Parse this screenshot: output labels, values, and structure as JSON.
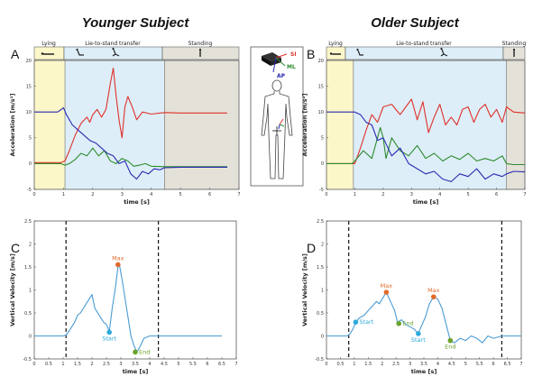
{
  "headings": {
    "left": "Younger Subject",
    "right": "Older Subject"
  },
  "panel_letters": [
    "A",
    "B",
    "C",
    "D"
  ],
  "phases": {
    "lying": "Lying",
    "transfer": "Lie-to-stand transfer",
    "standing": "Standing"
  },
  "sensor": {
    "si": "SI",
    "ml": "ML",
    "ap": "AP"
  },
  "colors": {
    "si": "#e0302a",
    "ml": "#2e8b2e",
    "ap": "#2a2ab0",
    "velocity": "#4a9bd4",
    "max": "#e26b2a",
    "start": "#2eaadc",
    "end": "#6aa32a",
    "lying_bg": "#fbf7c9",
    "transfer_bg": "#ddeef8",
    "standing_bg": "#e4e1d8"
  },
  "icons": [
    "lying-person-icon",
    "sitting-person-icon",
    "rising-person-icon",
    "standing-person-icon",
    "imu-sensor-icon",
    "body-outline-icon"
  ],
  "chart_data": [
    {
      "id": "A",
      "type": "line",
      "xlabel": "time [s]",
      "ylabel": "Acceleration [m/s²]",
      "xlim": [
        0,
        7
      ],
      "ylim": [
        -5,
        20
      ],
      "xticks": [
        "0",
        "1",
        "2",
        "3",
        "4",
        "5",
        "6",
        "7"
      ],
      "yticks": [
        "-5",
        "0",
        "5",
        "10",
        "15",
        "20"
      ],
      "phase_bounds": [
        1.05,
        4.45
      ],
      "series": [
        {
          "key": "si",
          "x": [
            0,
            0.9,
            1.05,
            1.2,
            1.4,
            1.6,
            1.8,
            1.9,
            2.0,
            2.15,
            2.3,
            2.45,
            2.6,
            2.7,
            2.8,
            2.9,
            3.0,
            3.1,
            3.2,
            3.35,
            3.5,
            3.7,
            4.0,
            4.45,
            5,
            6,
            6.6
          ],
          "y": [
            0.2,
            0.2,
            0.5,
            2.5,
            5.5,
            7.8,
            9.0,
            8.0,
            9.5,
            10.5,
            9.0,
            10.5,
            15.5,
            18.5,
            13.0,
            8.5,
            5.0,
            11.0,
            13.0,
            11.0,
            8.5,
            10.0,
            9.6,
            9.9,
            9.8,
            9.8,
            9.8
          ]
        },
        {
          "key": "ml",
          "x": [
            0,
            0.9,
            1.05,
            1.2,
            1.4,
            1.6,
            1.8,
            2.0,
            2.2,
            2.4,
            2.6,
            2.8,
            3.0,
            3.2,
            3.4,
            3.6,
            3.8,
            4.0,
            4.45,
            5,
            6,
            6.6
          ],
          "y": [
            0,
            0,
            -0.3,
            0,
            0.8,
            2.0,
            1.5,
            3.0,
            1.5,
            2.5,
            0.5,
            0.0,
            1.0,
            0.5,
            -0.5,
            -0.3,
            0.0,
            -0.5,
            -0.6,
            -0.6,
            -0.6,
            -0.6
          ]
        },
        {
          "key": "ap",
          "x": [
            0,
            0.8,
            1.0,
            1.1,
            1.3,
            1.5,
            1.7,
            1.9,
            2.1,
            2.3,
            2.5,
            2.7,
            2.9,
            3.1,
            3.3,
            3.5,
            3.7,
            3.9,
            4.1,
            4.3,
            4.45,
            5,
            6,
            6.6
          ],
          "y": [
            10,
            10,
            10.8,
            9.5,
            7.5,
            6.5,
            5.5,
            4.5,
            4.0,
            3.0,
            2.0,
            1.5,
            0.0,
            0.5,
            -2.0,
            -3.0,
            -1.5,
            -2.0,
            -1.0,
            -1.2,
            -0.8,
            -0.7,
            -0.7,
            -0.7
          ]
        }
      ]
    },
    {
      "id": "B",
      "type": "line",
      "xlabel": "time [s]",
      "ylabel": "Acceleration [m/s²]",
      "xlim": [
        0,
        7
      ],
      "ylim": [
        -5,
        20
      ],
      "xticks": [
        "0",
        "1",
        "2",
        "3",
        "4",
        "5",
        "6",
        "7"
      ],
      "yticks": [
        "-5",
        "0",
        "5",
        "10",
        "15",
        "20"
      ],
      "phase_bounds": [
        0.95,
        6.35
      ],
      "series": [
        {
          "key": "si",
          "x": [
            0,
            0.9,
            1.0,
            1.2,
            1.4,
            1.6,
            1.8,
            2.0,
            2.3,
            2.6,
            2.8,
            3.0,
            3.2,
            3.4,
            3.6,
            3.8,
            4.0,
            4.2,
            4.4,
            4.6,
            4.8,
            5.0,
            5.2,
            5.4,
            5.6,
            5.8,
            6.0,
            6.2,
            6.35,
            6.6,
            7.0
          ],
          "y": [
            0,
            0,
            0,
            3.0,
            6.5,
            9.5,
            8.0,
            11.0,
            11.5,
            9.5,
            11.0,
            12.5,
            8.5,
            12.0,
            6.0,
            9.0,
            11.5,
            7.5,
            9.0,
            7.5,
            10.5,
            11.0,
            8.0,
            10.5,
            11.5,
            9.0,
            10.5,
            8.0,
            11.0,
            10.0,
            9.8
          ]
        },
        {
          "key": "ml",
          "x": [
            0,
            0.9,
            1.0,
            1.3,
            1.6,
            1.9,
            2.0,
            2.1,
            2.3,
            2.6,
            2.9,
            3.2,
            3.5,
            3.8,
            4.1,
            4.4,
            4.7,
            5.0,
            5.3,
            5.6,
            5.9,
            6.2,
            6.35,
            6.6,
            7.0
          ],
          "y": [
            0,
            0,
            0.5,
            2.5,
            1.0,
            7.0,
            5.0,
            1.0,
            5.0,
            2.5,
            1.5,
            3.5,
            1.0,
            2.0,
            0.5,
            1.5,
            0.8,
            2.0,
            0.5,
            1.0,
            0.5,
            1.5,
            0.0,
            -0.2,
            -0.2
          ]
        },
        {
          "key": "ap",
          "x": [
            0,
            0.9,
            1.0,
            1.2,
            1.4,
            1.6,
            1.8,
            2.0,
            2.3,
            2.6,
            2.9,
            3.2,
            3.5,
            3.8,
            4.1,
            4.4,
            4.7,
            5.0,
            5.3,
            5.6,
            5.9,
            6.2,
            6.35,
            6.6,
            7.0
          ],
          "y": [
            10,
            10,
            10,
            9.5,
            8.0,
            7.5,
            4.5,
            5.0,
            1.5,
            3.0,
            0.0,
            -1.0,
            -2.0,
            -1.5,
            -3.0,
            -3.5,
            -2.0,
            -2.5,
            -1.0,
            -3.0,
            -2.0,
            -2.5,
            -2.0,
            -1.5,
            -1.6
          ]
        }
      ]
    },
    {
      "id": "C",
      "type": "line",
      "xlabel": "time [s]",
      "ylabel": "Vertical Velocity [m/s]",
      "xlim": [
        0,
        7
      ],
      "ylim": [
        -0.5,
        2.5
      ],
      "xticks": [
        "0",
        "0.5",
        "1",
        "1.5",
        "2",
        "2.5",
        "3",
        "3.5",
        "4",
        "4.5",
        "5",
        "5.5",
        "6",
        "6.5",
        "7"
      ],
      "yticks": [
        "-0.5",
        "0",
        "0.5",
        "1",
        "1.5",
        "2",
        "2.5"
      ],
      "vlines": [
        1.1,
        4.3
      ],
      "series": [
        {
          "key": "velocity",
          "x": [
            0,
            1.0,
            1.1,
            1.2,
            1.3,
            1.4,
            1.5,
            1.6,
            1.7,
            1.8,
            1.9,
            2.0,
            2.1,
            2.2,
            2.3,
            2.4,
            2.5,
            2.6,
            2.7,
            2.8,
            2.9,
            2.95,
            3.05,
            3.15,
            3.25,
            3.35,
            3.45,
            3.55,
            3.65,
            3.8,
            4.0,
            4.3,
            5,
            6,
            6.5
          ],
          "y": [
            0,
            0,
            0.02,
            0.1,
            0.2,
            0.3,
            0.45,
            0.5,
            0.6,
            0.7,
            0.8,
            0.9,
            0.6,
            0.5,
            0.4,
            0.3,
            0.25,
            0.1,
            0.6,
            1.0,
            1.5,
            1.55,
            1.2,
            0.8,
            0.4,
            0.0,
            -0.2,
            -0.35,
            -0.25,
            -0.05,
            0.0,
            0.0,
            0,
            0,
            0
          ]
        }
      ],
      "markers": [
        {
          "label": "Max",
          "x": 2.9,
          "y": 1.55,
          "color_key": "max",
          "pos": "above"
        },
        {
          "label": "Start",
          "x": 2.6,
          "y": 0.08,
          "color_key": "start",
          "pos": "below"
        },
        {
          "label": "End",
          "x": 3.5,
          "y": -0.35,
          "color_key": "end",
          "pos": "right"
        }
      ]
    },
    {
      "id": "D",
      "type": "line",
      "xlabel": "time [s]",
      "ylabel": "Vertical Velocity [m/s]",
      "xlim": [
        0,
        7
      ],
      "ylim": [
        -0.5,
        2.5
      ],
      "xticks": [
        "0",
        "0.5",
        "1",
        "1.5",
        "2",
        "2.5",
        "3",
        "3.5",
        "4",
        "4.5",
        "5",
        "5.5",
        "6",
        "6.5",
        "7"
      ],
      "yticks": [
        "-0.5",
        "0",
        "0.5",
        "1",
        "1.5",
        "2",
        "2.5"
      ],
      "vlines": [
        0.8,
        6.3
      ],
      "series": [
        {
          "key": "velocity",
          "x": [
            0,
            0.75,
            0.85,
            0.95,
            1.05,
            1.2,
            1.35,
            1.5,
            1.65,
            1.8,
            1.9,
            2.0,
            2.15,
            2.3,
            2.45,
            2.55,
            2.7,
            2.85,
            3.0,
            3.15,
            3.3,
            3.4,
            3.55,
            3.7,
            3.85,
            4.0,
            4.15,
            4.3,
            4.45,
            4.6,
            4.8,
            5.0,
            5.2,
            5.4,
            5.6,
            5.8,
            6.0,
            6.3,
            7.0
          ],
          "y": [
            0,
            0,
            0.05,
            0.15,
            0.3,
            0.4,
            0.45,
            0.55,
            0.65,
            0.75,
            0.7,
            0.8,
            0.95,
            0.75,
            0.55,
            0.3,
            0.35,
            0.25,
            0.2,
            0.15,
            0.05,
            0.2,
            0.4,
            0.7,
            0.85,
            0.8,
            0.6,
            0.25,
            -0.1,
            -0.15,
            -0.05,
            -0.1,
            0.0,
            -0.05,
            -0.15,
            0.0,
            -0.05,
            0.0,
            0.0
          ]
        }
      ],
      "markers": [
        {
          "label": "Max",
          "x": 2.15,
          "y": 0.95,
          "color_key": "max",
          "pos": "above"
        },
        {
          "label": "Start",
          "x": 1.05,
          "y": 0.3,
          "color_key": "start",
          "pos": "right"
        },
        {
          "label": "End",
          "x": 2.6,
          "y": 0.27,
          "color_key": "end",
          "pos": "right"
        },
        {
          "label": "Start",
          "x": 3.3,
          "y": 0.05,
          "color_key": "start",
          "pos": "below"
        },
        {
          "label": "Max",
          "x": 3.85,
          "y": 0.85,
          "color_key": "max",
          "pos": "above"
        },
        {
          "label": "End",
          "x": 4.45,
          "y": -0.1,
          "color_key": "end",
          "pos": "below"
        }
      ]
    }
  ]
}
